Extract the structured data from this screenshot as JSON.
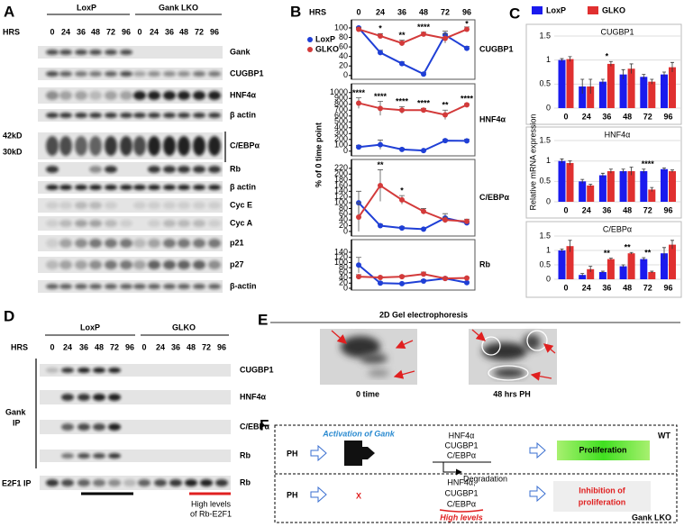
{
  "panel_labels": [
    "A",
    "B",
    "C",
    "D",
    "E",
    "F"
  ],
  "panel_a": {
    "hrs": "HRS",
    "groups": [
      "LoxP",
      "Gank LKO"
    ],
    "lanes": [
      "0",
      "24",
      "36",
      "48",
      "72",
      "96"
    ],
    "rows": [
      "Gank",
      "CUGBP1",
      "HNF4α",
      "β actin",
      "C/EBPα",
      "Rb",
      "β actin",
      "Cyc E",
      "Cyc A",
      "p21",
      "p27",
      "β-actin"
    ],
    "markers": [
      "42kD",
      "30kD"
    ]
  },
  "panel_d": {
    "hrs": "HRS",
    "groups": [
      "LoxP",
      "GLKO"
    ],
    "lanes": [
      "0",
      "24",
      "36",
      "48",
      "72",
      "96"
    ],
    "rows": [
      "CUGBP1",
      "HNF4α",
      "C/EBPα",
      "Rb",
      "Rb"
    ],
    "gank_ip": [
      "Gank",
      "IP"
    ],
    "e2f1_ip": "E2F1 IP",
    "note": [
      "High levels",
      "of Rb-E2F1"
    ]
  },
  "panel_e": {
    "title": "2D Gel electrophoresis",
    "captions": [
      "0 time",
      "48 hrs PH"
    ]
  },
  "panel_f": {
    "wt": {
      "ph": "PH",
      "activation": "Activation of Gank",
      "factors": [
        "HNF4α",
        "CUGBP1",
        "C/EBPα"
      ],
      "degradation": "Degradation",
      "outcome": "Proliferation",
      "genotype": "WT"
    },
    "lko": {
      "ph": "PH",
      "mark": "X",
      "factors": [
        "HNF4α,",
        "CUGBP1",
        "C/EBPα"
      ],
      "levels": "High levels",
      "outcome": [
        "Inhibition of",
        "proliferation"
      ],
      "genotype": "Gank LKO"
    }
  },
  "chart_data": [
    {
      "type": "line",
      "title": "CUGBP1",
      "x_label": "HRS",
      "y_label": "% of 0 time point",
      "categories": [
        "0",
        "24",
        "36",
        "48",
        "72",
        "96"
      ],
      "series": [
        {
          "name": "LoxP",
          "color": "#1f3fd6",
          "values": [
            100,
            48,
            25,
            3,
            85,
            57
          ],
          "errors": [
            2,
            5,
            4,
            3,
            8,
            4
          ]
        },
        {
          "name": "GLKO",
          "color": "#d33a3a",
          "values": [
            97,
            83,
            68,
            87,
            78,
            97
          ],
          "errors": [
            4,
            5,
            6,
            4,
            10,
            5
          ]
        }
      ],
      "significance": [
        null,
        "*",
        "**",
        "****",
        null,
        "*"
      ],
      "ylim": [
        -8,
        117
      ],
      "yticks": [
        0,
        20,
        40,
        60,
        80,
        100
      ]
    },
    {
      "type": "line",
      "title": "HNF4α",
      "series": [
        {
          "color": "#1f3fd6",
          "values": [
            70,
            110,
            30,
            10,
            180,
            175
          ],
          "errors": [
            30,
            80,
            20,
            10,
            20,
            30
          ]
        },
        {
          "color": "#d33a3a",
          "values": [
            820,
            730,
            700,
            700,
            620,
            790
          ],
          "errors": [
            90,
            120,
            60,
            30,
            80,
            20
          ]
        }
      ],
      "significance": [
        "****",
        "****",
        "****",
        "****",
        "**",
        "****"
      ],
      "ylim": [
        -80,
        1150
      ],
      "yticks": [
        0,
        100,
        200,
        300,
        400,
        500,
        600,
        700,
        800,
        900,
        1000
      ]
    },
    {
      "type": "line",
      "title": "C/EBPα",
      "series": [
        {
          "color": "#1f3fd6",
          "values": [
            100,
            20,
            12,
            8,
            47,
            30
          ],
          "errors": [
            40,
            5,
            5,
            3,
            15,
            5
          ]
        },
        {
          "color": "#d33a3a",
          "values": [
            50,
            160,
            110,
            70,
            40,
            35
          ],
          "errors": [
            50,
            55,
            15,
            10,
            10,
            8
          ]
        }
      ],
      "significance": [
        null,
        "**",
        "*",
        null,
        null,
        null
      ],
      "ylim": [
        -16,
        251
      ],
      "yticks": [
        0,
        20,
        40,
        60,
        80,
        100,
        120,
        140,
        160,
        180,
        200,
        220
      ]
    },
    {
      "type": "line",
      "title": "Rb",
      "series": [
        {
          "color": "#1f3fd6",
          "values": [
            90,
            20,
            18,
            28,
            38,
            22
          ],
          "errors": [
            30,
            5,
            3,
            5,
            5,
            3
          ]
        },
        {
          "color": "#d33a3a",
          "values": [
            45,
            42,
            45,
            55,
            38,
            40
          ],
          "errors": [
            8,
            3,
            5,
            8,
            5,
            3
          ]
        }
      ],
      "ylim": [
        -7,
        189
      ],
      "yticks": [
        0,
        20,
        40,
        60,
        80,
        100,
        120,
        140
      ]
    },
    {
      "type": "bar",
      "title": "CUGBP1",
      "y_label": "Relative mRNA expression",
      "categories": [
        "0",
        "24",
        "36",
        "48",
        "72",
        "96"
      ],
      "series": [
        {
          "name": "LoxP",
          "color": "#1a1aee",
          "values": [
            1.0,
            0.45,
            0.55,
            0.7,
            0.65,
            0.7
          ],
          "errors": [
            0.03,
            0.15,
            0.05,
            0.1,
            0.05,
            0.05
          ]
        },
        {
          "name": "GLKO",
          "color": "#e03030",
          "values": [
            1.02,
            0.45,
            0.92,
            0.82,
            0.55,
            0.85
          ],
          "errors": [
            0.05,
            0.15,
            0.05,
            0.1,
            0.05,
            0.1
          ]
        }
      ],
      "significance": [
        null,
        null,
        "*",
        null,
        null,
        null
      ],
      "ylim": [
        0,
        1.7
      ],
      "yticks": [
        0,
        0.5,
        1,
        1.5
      ]
    },
    {
      "type": "bar",
      "title": "HNF4α",
      "categories": [
        "0",
        "24",
        "36",
        "48",
        "72",
        "96"
      ],
      "series": [
        {
          "color": "#1a1aee",
          "values": [
            1.0,
            0.5,
            0.65,
            0.75,
            0.75,
            0.8
          ],
          "errors": [
            0.05,
            0.05,
            0.05,
            0.05,
            0.05,
            0.03
          ]
        },
        {
          "color": "#e03030",
          "values": [
            0.95,
            0.4,
            0.75,
            0.75,
            0.3,
            0.75
          ],
          "errors": [
            0.05,
            0.03,
            0.05,
            0.1,
            0.05,
            0.03
          ]
        }
      ],
      "significance": [
        null,
        null,
        null,
        null,
        "****",
        null
      ],
      "ylim": [
        0,
        1.7
      ],
      "yticks": [
        0,
        0.5,
        1,
        1.5
      ]
    },
    {
      "type": "bar",
      "title": "C/EBPα",
      "categories": [
        "0",
        "24",
        "36",
        "48",
        "72",
        "96"
      ],
      "series": [
        {
          "color": "#1a1aee",
          "values": [
            1.0,
            0.15,
            0.25,
            0.45,
            0.7,
            0.9
          ],
          "errors": [
            0.05,
            0.05,
            0.03,
            0.05,
            0.05,
            0.2
          ]
        },
        {
          "color": "#e03030",
          "values": [
            1.15,
            0.35,
            0.7,
            0.9,
            0.25,
            1.2
          ],
          "errors": [
            0.2,
            0.1,
            0.03,
            0.03,
            0.03,
            0.15
          ]
        }
      ],
      "significance": [
        null,
        null,
        "**",
        "**",
        "**",
        null
      ],
      "ylim": [
        0,
        1.7
      ],
      "yticks": [
        0,
        0.5,
        1,
        1.5
      ]
    }
  ]
}
